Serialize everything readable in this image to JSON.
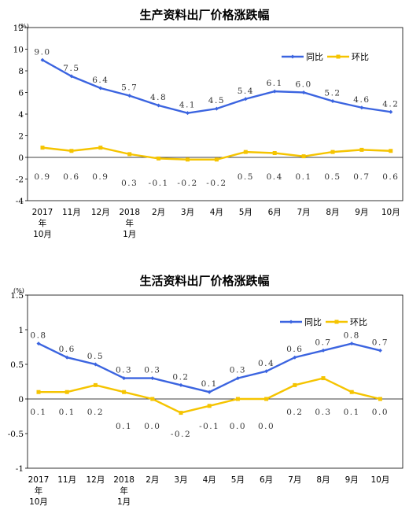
{
  "chart_data": [
    {
      "type": "line",
      "title": "生产资料出厂价格涨跌幅",
      "unit_label": "(%)",
      "categories": [
        [
          "2017",
          "年",
          "10月"
        ],
        [
          "11月"
        ],
        [
          "12月"
        ],
        [
          "2018",
          "年",
          "1月"
        ],
        [
          "2月"
        ],
        [
          "3月"
        ],
        [
          "4月"
        ],
        [
          "5月"
        ],
        [
          "6月"
        ],
        [
          "7月"
        ],
        [
          "8月"
        ],
        [
          "9月"
        ],
        [
          "10月"
        ]
      ],
      "series": [
        {
          "name": "同比",
          "color": "#3b64e0",
          "values": [
            9.0,
            7.5,
            6.4,
            5.7,
            4.8,
            4.1,
            4.5,
            5.4,
            6.1,
            6.0,
            5.2,
            4.6,
            4.2
          ],
          "labels": [
            "9.0",
            "7.5",
            "6.4",
            "5.7",
            "4.8",
            "4.1",
            "4.5",
            "5.4",
            "6.1",
            "6.0",
            "5.2",
            "4.6",
            "4.2"
          ]
        },
        {
          "name": "环比",
          "color": "#f5c400",
          "values": [
            0.9,
            0.6,
            0.9,
            0.3,
            -0.1,
            -0.2,
            -0.2,
            0.5,
            0.4,
            0.1,
            0.5,
            0.7,
            0.6
          ],
          "labels": [
            "0.9",
            "0.6",
            "0.9",
            "0.3",
            "-0.1",
            "-0.2",
            "-0.2",
            "0.5",
            "0.4",
            "0.1",
            "0.5",
            "0.7",
            "0.6"
          ]
        }
      ],
      "ylim": [
        -4,
        12
      ],
      "yticks": [
        -4,
        -2,
        0,
        2,
        4,
        6,
        8,
        10,
        12
      ],
      "ytick_labels": [
        "-4",
        "-2",
        "0",
        "2",
        "4",
        "6",
        "8",
        "10",
        "12"
      ],
      "legend": "top-right",
      "grid": false
    },
    {
      "type": "line",
      "title": "生活资料出厂价格涨跌幅",
      "unit_label": "(%)",
      "categories": [
        [
          "2017",
          "年",
          "10月"
        ],
        [
          "11月"
        ],
        [
          "12月"
        ],
        [
          "2018",
          "年",
          "1月"
        ],
        [
          "2月"
        ],
        [
          "3月"
        ],
        [
          "4月"
        ],
        [
          "5月"
        ],
        [
          "6月"
        ],
        [
          "7月"
        ],
        [
          "8月"
        ],
        [
          "9月"
        ],
        [
          "10月"
        ]
      ],
      "series": [
        {
          "name": "同比",
          "color": "#3b64e0",
          "values": [
            0.8,
            0.6,
            0.5,
            0.3,
            0.3,
            0.2,
            0.1,
            0.3,
            0.4,
            0.6,
            0.7,
            0.8,
            0.7
          ],
          "labels": [
            "0.8",
            "0.6",
            "0.5",
            "0.3",
            "0.3",
            "0.2",
            "0.1",
            "0.3",
            "0.4",
            "0.6",
            "0.7",
            "0.8",
            "0.7"
          ]
        },
        {
          "name": "环比",
          "color": "#f5c400",
          "values": [
            0.1,
            0.1,
            0.2,
            0.1,
            0.0,
            -0.2,
            -0.1,
            0.0,
            0.0,
            0.2,
            0.3,
            0.1,
            0.0
          ],
          "labels": [
            "0.1",
            "0.1",
            "0.2",
            "0.1",
            "0.0",
            "-0.2",
            "-0.1",
            "0.0",
            "0.0",
            "0.2",
            "0.3",
            "0.1",
            "0.0"
          ]
        }
      ],
      "ylim": [
        -1,
        1.5
      ],
      "yticks": [
        -1,
        -0.5,
        0,
        0.5,
        1,
        1.5
      ],
      "ytick_labels": [
        "-1",
        "-0.5",
        "0",
        "0.5",
        "1",
        "1.5"
      ],
      "legend": "top-right",
      "grid": false
    }
  ]
}
